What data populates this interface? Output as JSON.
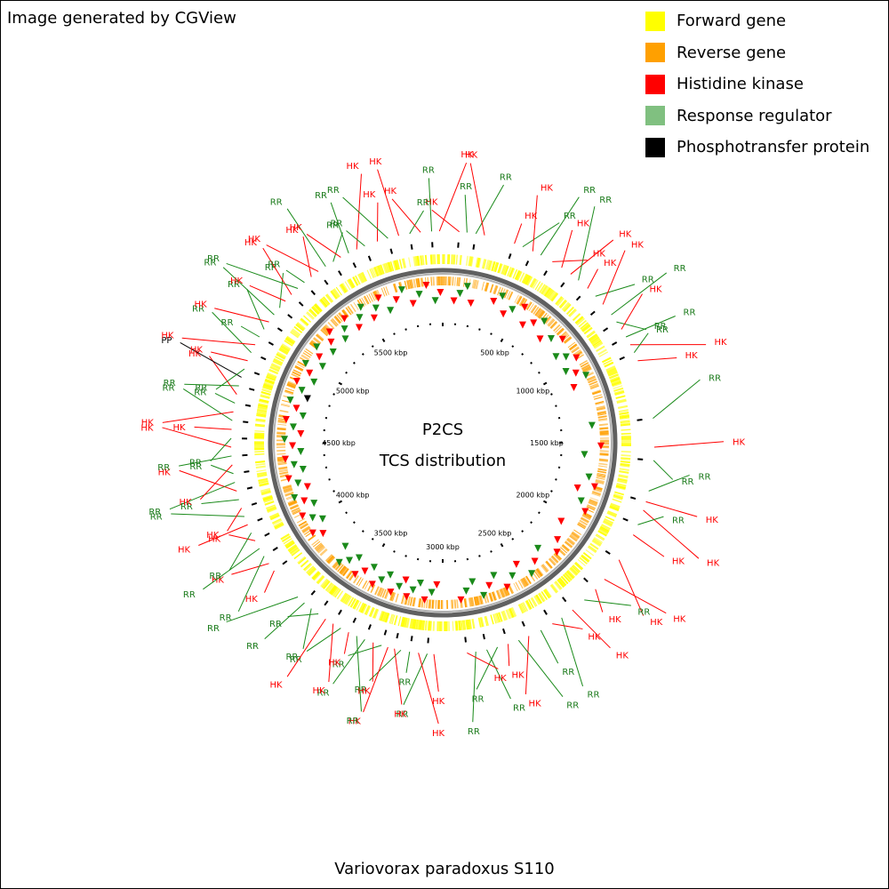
{
  "credit": "Image generated by CGView",
  "legend": [
    {
      "label": "Forward gene",
      "color": "#ffff00"
    },
    {
      "label": "Reverse gene",
      "color": "#ffa000"
    },
    {
      "label": "Histidine kinase",
      "color": "#ff0000"
    },
    {
      "label": "Response regulator",
      "color": "#80c080"
    },
    {
      "label": "Phosphotransfer protein",
      "color": "#000000"
    }
  ],
  "center_title": "P2CS",
  "center_subtitle": "TCS distribution",
  "organism": "Variovorax paradoxus S110",
  "genome_length_kbp": 6000,
  "ruler_labels": [
    "500 kbp",
    "1000 kbp",
    "1500 kbp",
    "2000 kbp",
    "2500 kbp",
    "3000 kbp",
    "3500 kbp",
    "4000 kbp",
    "4500 kbp",
    "5000 kbp",
    "5500 kbp"
  ],
  "ruler_positions_kbp": [
    500,
    1000,
    1500,
    2000,
    2500,
    3000,
    3500,
    4000,
    4500,
    5000,
    5500
  ],
  "features": [
    {
      "label": "HK",
      "pos": 75
    },
    {
      "label": "RR",
      "pos": 110
    },
    {
      "label": "RR",
      "pos": 150
    },
    {
      "label": "HK",
      "pos": 190
    },
    {
      "label": "HK",
      "pos": 330
    },
    {
      "label": "RR",
      "pos": 370
    },
    {
      "label": "HK",
      "pos": 420
    },
    {
      "label": "RR",
      "pos": 460
    },
    {
      "label": "HK",
      "pos": 520
    },
    {
      "label": "HK",
      "pos": 570
    },
    {
      "label": "HK",
      "pos": 620
    },
    {
      "label": "RR",
      "pos": 665
    },
    {
      "label": "HK",
      "pos": 720
    },
    {
      "label": "RR",
      "pos": 770
    },
    {
      "label": "HK",
      "pos": 820
    },
    {
      "label": "RR",
      "pos": 880
    },
    {
      "label": "RR",
      "pos": 920
    },
    {
      "label": "HK",
      "pos": 960
    },
    {
      "label": "RR",
      "pos": 1000
    },
    {
      "label": "HK",
      "pos": 1040
    },
    {
      "label": "RR",
      "pos": 1080
    },
    {
      "label": "HK",
      "pos": 1120
    },
    {
      "label": "RR",
      "pos": 1390
    },
    {
      "label": "HK",
      "pos": 1520
    },
    {
      "label": "RR",
      "pos": 1580
    },
    {
      "label": "RR",
      "pos": 1720
    },
    {
      "label": "HK",
      "pos": 1770
    },
    {
      "label": "HK",
      "pos": 1810
    },
    {
      "label": "RR",
      "pos": 1880
    },
    {
      "label": "HK",
      "pos": 1930
    },
    {
      "label": "HK",
      "pos": 2060
    },
    {
      "label": "HK",
      "pos": 2170
    },
    {
      "label": "HK",
      "pos": 2230
    },
    {
      "label": "RR",
      "pos": 2300
    },
    {
      "label": "HK",
      "pos": 2370
    },
    {
      "label": "RR",
      "pos": 2430
    },
    {
      "label": "HK",
      "pos": 2480
    },
    {
      "label": "RR",
      "pos": 2540
    },
    {
      "label": "HK",
      "pos": 2600
    },
    {
      "label": "RR",
      "pos": 2650
    },
    {
      "label": "HK",
      "pos": 2700
    },
    {
      "label": "RR",
      "pos": 2750
    },
    {
      "label": "RR",
      "pos": 2800
    },
    {
      "label": "RR",
      "pos": 2850
    },
    {
      "label": "HK",
      "pos": 2890
    },
    {
      "label": "HK",
      "pos": 3040
    },
    {
      "label": "RR",
      "pos": 3070
    },
    {
      "label": "HK",
      "pos": 3110
    },
    {
      "label": "RR",
      "pos": 3150
    },
    {
      "label": "RR",
      "pos": 3190
    },
    {
      "label": "HK",
      "pos": 3220
    },
    {
      "label": "HK",
      "pos": 3250
    },
    {
      "label": "RR",
      "pos": 3280
    },
    {
      "label": "HK",
      "pos": 3320
    },
    {
      "label": "RR",
      "pos": 3360
    },
    {
      "label": "RR",
      "pos": 3400
    },
    {
      "label": "HK",
      "pos": 3440
    },
    {
      "label": "RR",
      "pos": 3480
    },
    {
      "label": "HK",
      "pos": 3520
    },
    {
      "label": "HK",
      "pos": 3560
    },
    {
      "label": "RR",
      "pos": 3600
    },
    {
      "label": "RR",
      "pos": 3640
    },
    {
      "label": "RR",
      "pos": 3680
    },
    {
      "label": "RR",
      "pos": 3720
    },
    {
      "label": "HK",
      "pos": 3880
    },
    {
      "label": "HK",
      "pos": 3920
    },
    {
      "label": "RR",
      "pos": 3960
    },
    {
      "label": "RR",
      "pos": 4000
    },
    {
      "label": "HK",
      "pos": 4040
    },
    {
      "label": "RR",
      "pos": 4080
    },
    {
      "label": "HK",
      "pos": 4120
    },
    {
      "label": "RR",
      "pos": 4160
    },
    {
      "label": "HK",
      "pos": 4200
    },
    {
      "label": "RR",
      "pos": 4240
    },
    {
      "label": "HK",
      "pos": 4280
    },
    {
      "label": "RR",
      "pos": 4320
    },
    {
      "label": "RR",
      "pos": 4360
    },
    {
      "label": "HK",
      "pos": 4400
    },
    {
      "label": "RR",
      "pos": 4440
    },
    {
      "label": "HK",
      "pos": 4480
    },
    {
      "label": "RR",
      "pos": 4520
    },
    {
      "label": "HK",
      "pos": 4560
    },
    {
      "label": "RR",
      "pos": 4600
    },
    {
      "label": "HK",
      "pos": 4640
    },
    {
      "label": "RR",
      "pos": 4680
    },
    {
      "label": "HK",
      "pos": 4720
    },
    {
      "label": "RR",
      "pos": 4760
    },
    {
      "label": "PP",
      "pos": 4800
    },
    {
      "label": "RR",
      "pos": 4840
    },
    {
      "label": "HK",
      "pos": 4880
    },
    {
      "label": "RR",
      "pos": 4920
    },
    {
      "label": "HK",
      "pos": 4960
    },
    {
      "label": "RR",
      "pos": 5000
    },
    {
      "label": "RR",
      "pos": 5040
    },
    {
      "label": "HK",
      "pos": 5080
    },
    {
      "label": "RR",
      "pos": 5120
    },
    {
      "label": "RR",
      "pos": 5160
    },
    {
      "label": "HK",
      "pos": 5200
    },
    {
      "label": "HK",
      "pos": 5240
    },
    {
      "label": "RR",
      "pos": 5280
    },
    {
      "label": "RR",
      "pos": 5320
    },
    {
      "label": "HK",
      "pos": 5360
    },
    {
      "label": "HK",
      "pos": 5400
    },
    {
      "label": "RR",
      "pos": 5440
    },
    {
      "label": "RR",
      "pos": 5480
    },
    {
      "label": "HK",
      "pos": 5520
    },
    {
      "label": "RR",
      "pos": 5560
    },
    {
      "label": "HK",
      "pos": 5600
    },
    {
      "label": "RR",
      "pos": 5640
    },
    {
      "label": "HK",
      "pos": 5700
    },
    {
      "label": "RR",
      "pos": 5750
    },
    {
      "label": "HK",
      "pos": 5800
    },
    {
      "label": "RR",
      "pos": 5850
    },
    {
      "label": "HK",
      "pos": 5900
    },
    {
      "label": "RR",
      "pos": 5950
    },
    {
      "label": "HK",
      "pos": 5985
    }
  ]
}
